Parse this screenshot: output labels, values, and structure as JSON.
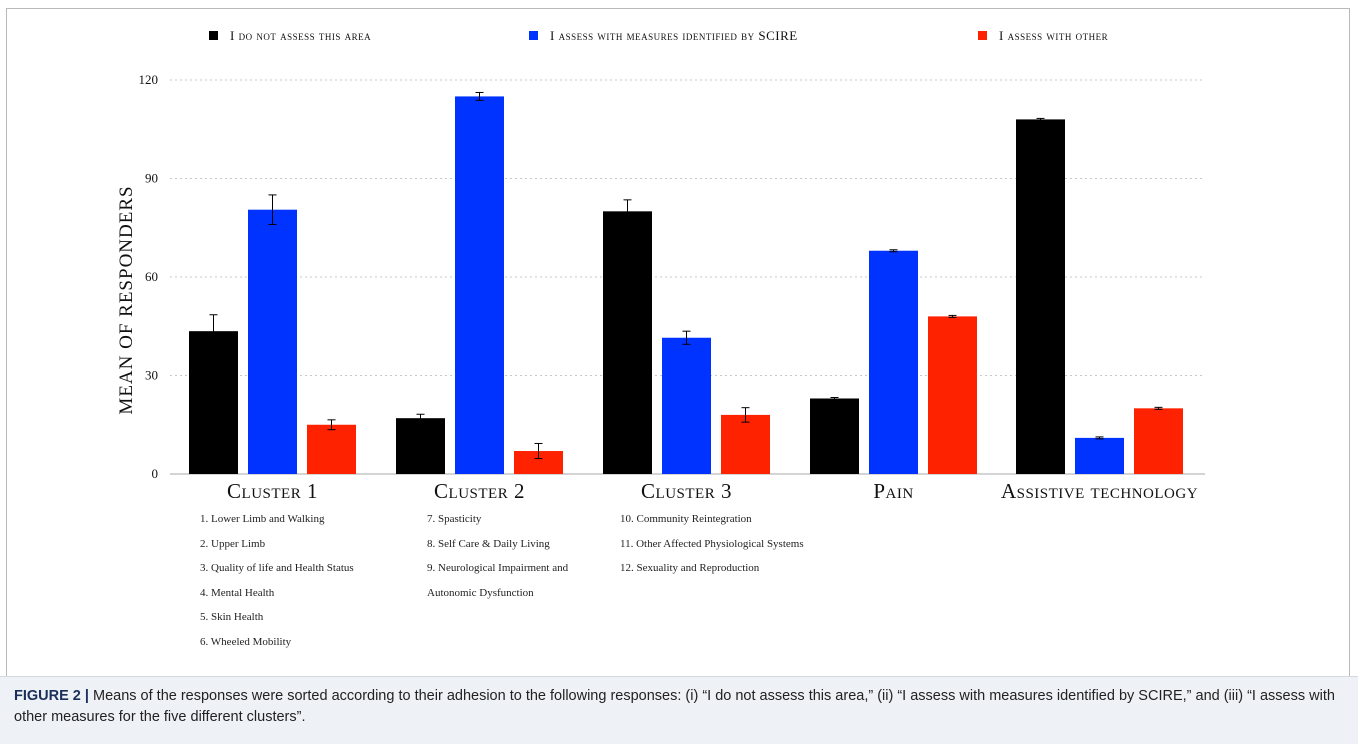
{
  "legend": [
    {
      "label": "I do not assess this area",
      "color": "#000000"
    },
    {
      "label": "I assess with measures identified by SCIRE",
      "color": "#0033ff"
    },
    {
      "label": "I assess with other",
      "color": "#ff2200"
    }
  ],
  "chart_data": {
    "type": "bar",
    "title": "",
    "xlabel": "",
    "ylabel": "MEAN OF RESPONDERS",
    "ylim": [
      0,
      120
    ],
    "yticks": [
      0,
      30,
      60,
      90,
      120
    ],
    "grid": true,
    "legend_position": "top",
    "error_bars": true,
    "categories": [
      "Cluster 1",
      "Cluster 2",
      "Cluster 3",
      "Pain",
      "Assistive technology"
    ],
    "series": [
      {
        "name": "I do not assess this area",
        "color": "#000000",
        "values": [
          43.5,
          17,
          80,
          23,
          108
        ],
        "errors": [
          5,
          1.2,
          3.5,
          0.3,
          0.3
        ]
      },
      {
        "name": "I assess with measures identified by SCIRE",
        "color": "#0033ff",
        "values": [
          80.5,
          115,
          41.5,
          68,
          11
        ],
        "errors": [
          4.5,
          1.2,
          2,
          0.3,
          0.3
        ]
      },
      {
        "name": "I assess with other",
        "color": "#ff2200",
        "values": [
          15,
          7,
          18,
          48,
          20
        ],
        "errors": [
          1.5,
          2.3,
          2.2,
          0.3,
          0.3
        ]
      }
    ]
  },
  "clusters": [
    {
      "items": [
        "1.   Lower Limb and Walking",
        "2.   Upper Limb",
        "3.   Quality of life and Health Status",
        "4.   Mental Health",
        "5.   Skin Health",
        "6.   Wheeled Mobility"
      ]
    },
    {
      "items": [
        "7.   Spasticity",
        "8.   Self Care & Daily Living",
        "9.   Neurological Impairment  and",
        "      Autonomic Dysfunction"
      ]
    },
    {
      "items": [
        "10.  Community Reintegration",
        "11.  Other Affected Physiological Systems",
        "12.  Sexuality and Reproduction"
      ]
    }
  ],
  "caption": {
    "label": "FIGURE 2 |",
    "text": " Means of the responses were sorted according to their adhesion to the following responses: (i) “I do not assess this area,” (ii) “I assess with measures identified by SCIRE,” and (iii) “I assess with other measures for the five different clusters”."
  }
}
